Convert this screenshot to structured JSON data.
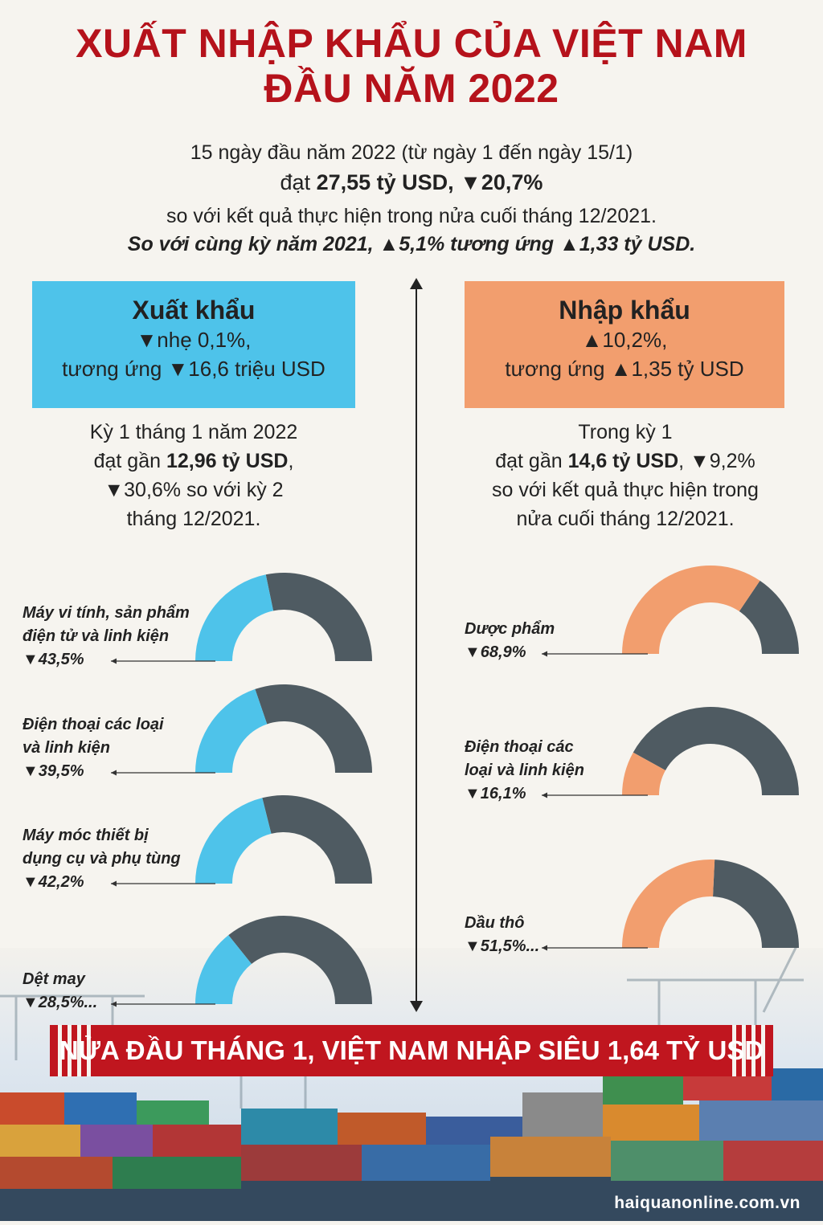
{
  "title": {
    "line1": "XUẤT NHẬP KHẨU CỦA VIỆT NAM",
    "line2": "ĐẦU NĂM 2022"
  },
  "summary": {
    "line1": "15 ngày đầu năm 2022 (từ ngày 1 đến ngày 15/1)",
    "line2_prefix": "đạt ",
    "line2_bold": "27,55 tỷ USD, ▼20,7%",
    "line3": "so với kết quả thực hiện trong nửa cuối tháng 12/2021.",
    "line4": "So với cùng kỳ năm 2021, ▲5,1% tương ứng ▲1,33 tỷ USD."
  },
  "export": {
    "heading": "Xuất khẩu",
    "line1": "▼nhẹ 0,1%,",
    "line2": "tương ứng ▼16,6 triệu USD",
    "desc1": "Kỳ 1 tháng 1 năm 2022",
    "desc2_prefix": "đạt gần ",
    "desc2_bold": "12,96 tỷ USD",
    "desc2_suffix": ",",
    "desc3": "▼30,6% so với kỳ 2",
    "desc4": "tháng 12/2021."
  },
  "import": {
    "heading": "Nhập khẩu",
    "line1": "▲10,2%,",
    "line2": "tương ứng ▲1,35 tỷ USD",
    "desc1": "Trong kỳ 1",
    "desc2_prefix": "đạt gần ",
    "desc2_bold": "14,6  tỷ USD",
    "desc2_suffix": ", ▼9,2%",
    "desc3": "so với kết quả thực hiện trong",
    "desc4": "nửa cuối tháng 12/2021."
  },
  "chart_data": [
    {
      "type": "pie",
      "group": "export",
      "color": "#4ec3ea",
      "rest_color": "#4f5b62",
      "items": [
        {
          "label_lines": [
            "Máy vi tính, sản phẩm",
            "điện tử và linh kiện"
          ],
          "pct_text": "▼43,5%",
          "value": 43.5
        },
        {
          "label_lines": [
            "Điện thoại các loại",
            "và linh kiện"
          ],
          "pct_text": "▼39,5%",
          "value": 39.5
        },
        {
          "label_lines": [
            "Máy móc thiết bị",
            "dụng cụ và phụ tùng"
          ],
          "pct_text": "▼42,2%",
          "value": 42.2
        },
        {
          "label_lines": [
            "Dệt may"
          ],
          "pct_text": "▼28,5%...",
          "value": 28.5
        }
      ]
    },
    {
      "type": "pie",
      "group": "import",
      "color": "#f29e6e",
      "rest_color": "#4f5b62",
      "items": [
        {
          "label_lines": [
            "Dược phẩm"
          ],
          "pct_text": "▼68,9%",
          "value": 68.9
        },
        {
          "label_lines": [
            "Điện thoại các",
            "loại và linh kiện"
          ],
          "pct_text": "▼16,1%",
          "value": 16.1
        },
        {
          "label_lines": [
            "Dầu thô"
          ],
          "pct_text": "▼51,5%...",
          "value": 51.5
        }
      ]
    }
  ],
  "banner": "NỬA ĐẦU THÁNG 1, VIỆT NAM NHẬP SIÊU 1,64 TỶ USD",
  "footer": "haiquanonline.com.vn",
  "colors": {
    "title": "#b5121b",
    "export_box": "#4ec3ea",
    "import_box": "#f29e6e",
    "banner": "#c0161f"
  }
}
